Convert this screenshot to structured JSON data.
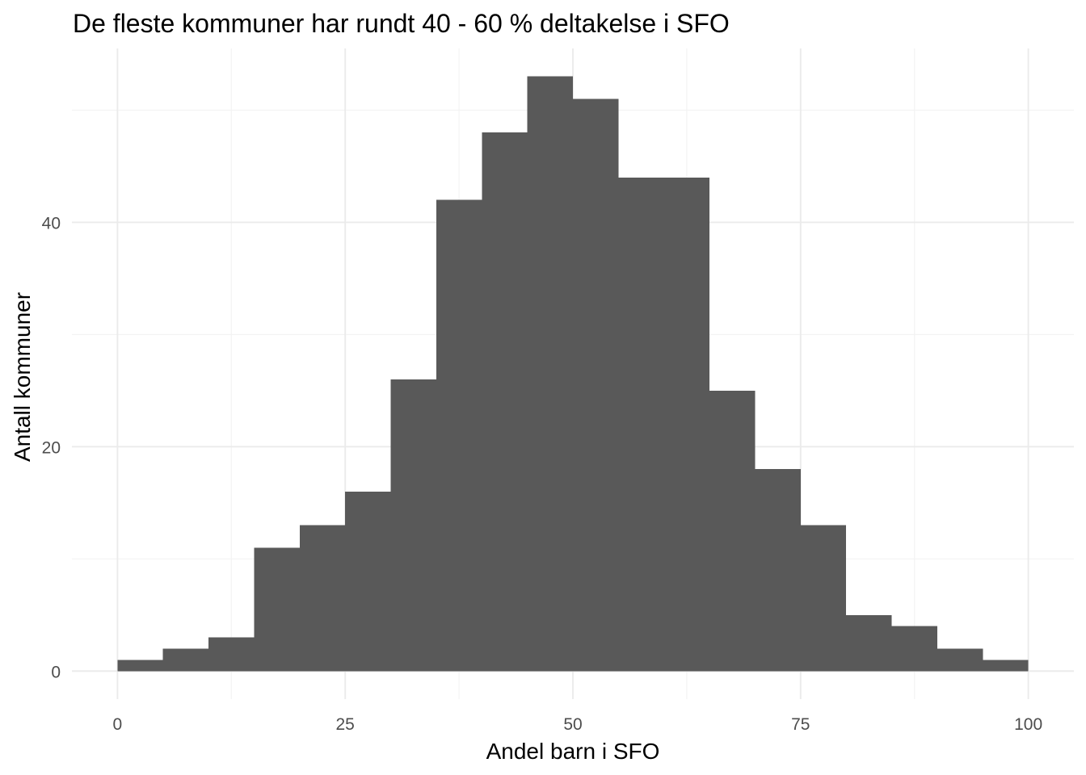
{
  "chart_data": {
    "type": "bar",
    "title": "De fleste kommuner har rundt 40 - 60 % deltakelse i SFO",
    "xlabel": "Andel barn i SFO",
    "ylabel": "Antall kommuner",
    "xlim": [
      -5,
      105
    ],
    "ylim": [
      -2.5,
      55.5
    ],
    "x_ticks": [
      0,
      25,
      50,
      75,
      100
    ],
    "x_tick_labels": [
      "0",
      "25",
      "50",
      "75",
      "100"
    ],
    "y_ticks": [
      0,
      20,
      40
    ],
    "y_tick_labels": [
      "0",
      "20",
      "40"
    ],
    "grid": true,
    "bin_width": 5,
    "bins": [
      {
        "start": 0,
        "end": 5,
        "count": 1
      },
      {
        "start": 5,
        "end": 10,
        "count": 2
      },
      {
        "start": 10,
        "end": 15,
        "count": 3
      },
      {
        "start": 15,
        "end": 20,
        "count": 11
      },
      {
        "start": 20,
        "end": 25,
        "count": 13
      },
      {
        "start": 25,
        "end": 30,
        "count": 16
      },
      {
        "start": 30,
        "end": 35,
        "count": 26
      },
      {
        "start": 35,
        "end": 40,
        "count": 42
      },
      {
        "start": 40,
        "end": 45,
        "count": 48
      },
      {
        "start": 45,
        "end": 50,
        "count": 53
      },
      {
        "start": 50,
        "end": 55,
        "count": 51
      },
      {
        "start": 55,
        "end": 60,
        "count": 44
      },
      {
        "start": 60,
        "end": 65,
        "count": 44
      },
      {
        "start": 65,
        "end": 70,
        "count": 25
      },
      {
        "start": 70,
        "end": 75,
        "count": 18
      },
      {
        "start": 75,
        "end": 80,
        "count": 13
      },
      {
        "start": 80,
        "end": 85,
        "count": 5
      },
      {
        "start": 85,
        "end": 90,
        "count": 4
      },
      {
        "start": 90,
        "end": 95,
        "count": 2
      },
      {
        "start": 95,
        "end": 100,
        "count": 1
      }
    ],
    "bar_color": "#595959",
    "grid_color": "#ebebeb"
  }
}
